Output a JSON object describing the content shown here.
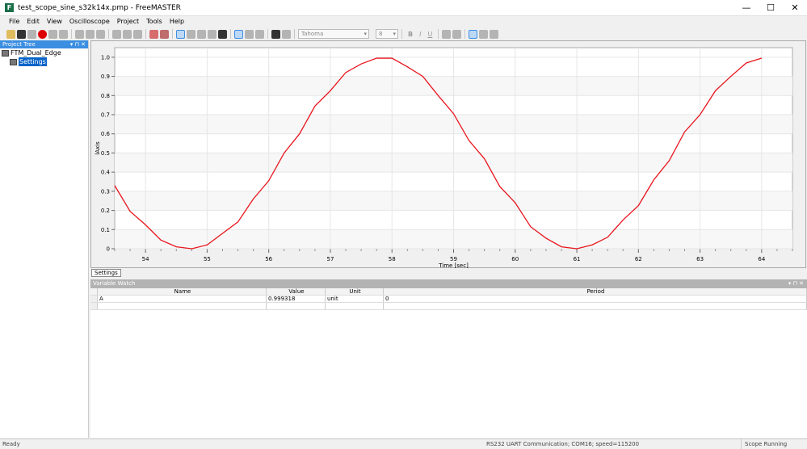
{
  "window": {
    "title": "test_scope_sine_s32k14x.pmp - FreeMASTER",
    "controls": [
      "—",
      "☐",
      "✕"
    ]
  },
  "menu": [
    "File",
    "Edit",
    "View",
    "Oscilloscope",
    "Project",
    "Tools",
    "Help"
  ],
  "toolbar": {
    "font": "Tahoma",
    "size": "8",
    "format_buttons": [
      "B",
      "I",
      "U"
    ]
  },
  "project_tree": {
    "title": "Project Tree",
    "controls": "▾ ⊓ ✕",
    "root": "FTM_Dual_Edge",
    "child": "Settings"
  },
  "tabs": {
    "settings": "Settings"
  },
  "variable_watch": {
    "title": "Variable Watch",
    "controls": "▾ ⊓ ✕",
    "columns": [
      "Name",
      "Value",
      "Unit",
      "Period"
    ],
    "rows": [
      [
        "A",
        "0.999318",
        "unit",
        "0"
      ]
    ]
  },
  "status": {
    "left": "Ready",
    "connection": "RS232 UART Communication; COM16; speed=115200",
    "scope": "Scope Running"
  },
  "chart_data": {
    "type": "line",
    "xlabel": "Time [sec]",
    "ylabel": "lAxis",
    "xlim": [
      53.5,
      64.5
    ],
    "ylim": [
      0,
      1.05
    ],
    "xticks": [
      54,
      55,
      56,
      57,
      58,
      59,
      60,
      61,
      62,
      63,
      64
    ],
    "yticks": [
      0,
      0.1,
      0.2,
      0.3,
      0.4,
      0.5,
      0.6,
      0.7,
      0.8,
      0.9,
      1.0
    ],
    "grid": true,
    "color": "#e8141c",
    "x": [
      53.5,
      53.75,
      54,
      54.25,
      54.5,
      54.75,
      55,
      55.25,
      55.5,
      55.75,
      56,
      56.25,
      56.5,
      56.75,
      57,
      57.25,
      57.5,
      57.75,
      58,
      58.25,
      58.5,
      58.75,
      59,
      59.25,
      59.5,
      59.75,
      60,
      60.25,
      60.5,
      60.75,
      61,
      61.25,
      61.5,
      61.75,
      62,
      62.25,
      62.5,
      62.75,
      63,
      63.25,
      63.5,
      63.75,
      64
    ],
    "y": [
      0.33,
      0.195,
      0.125,
      0.045,
      0.01,
      0.0,
      0.02,
      0.08,
      0.14,
      0.26,
      0.355,
      0.5,
      0.6,
      0.745,
      0.825,
      0.92,
      0.965,
      0.995,
      0.995,
      0.95,
      0.9,
      0.8,
      0.705,
      0.565,
      0.47,
      0.325,
      0.24,
      0.115,
      0.055,
      0.01,
      0.0,
      0.02,
      0.06,
      0.15,
      0.225,
      0.36,
      0.46,
      0.61,
      0.7,
      0.825,
      0.9,
      0.97,
      0.995
    ]
  }
}
